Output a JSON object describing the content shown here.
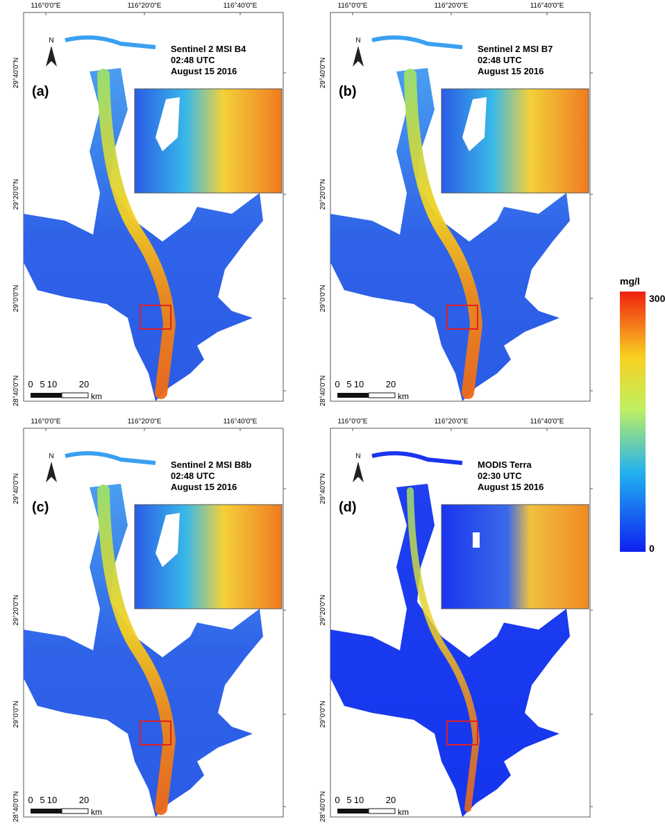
{
  "panels": [
    {
      "label": "(a)",
      "sensor": "Sentinel 2 MSI B4",
      "time": "02:48 UTC",
      "date": "August 15 2016"
    },
    {
      "label": "(b)",
      "sensor": "Sentinel 2 MSI B7",
      "time": "02:48 UTC",
      "date": "August 15 2016"
    },
    {
      "label": "(c)",
      "sensor": "Sentinel 2 MSI B8b",
      "time": "02:48 UTC",
      "date": "August 15 2016"
    },
    {
      "label": "(d)",
      "sensor": "MODIS Terra",
      "time": "02:30 UTC",
      "date": "August 15 2016"
    }
  ],
  "longitude_labels": [
    "116°0'0\"E",
    "116°20'0\"E",
    "116°40'0\"E"
  ],
  "latitude_labels": [
    "29°40'0\"N",
    "29°20'0\"N",
    "29°0'0\"N",
    "28°40'0\"N"
  ],
  "north_label": "N",
  "scale_bar": {
    "ticks": [
      "0",
      "5",
      "10",
      "20"
    ],
    "unit": "km"
  },
  "colorbar": {
    "unit": "mg/l",
    "max": 300,
    "min": 0
  }
}
